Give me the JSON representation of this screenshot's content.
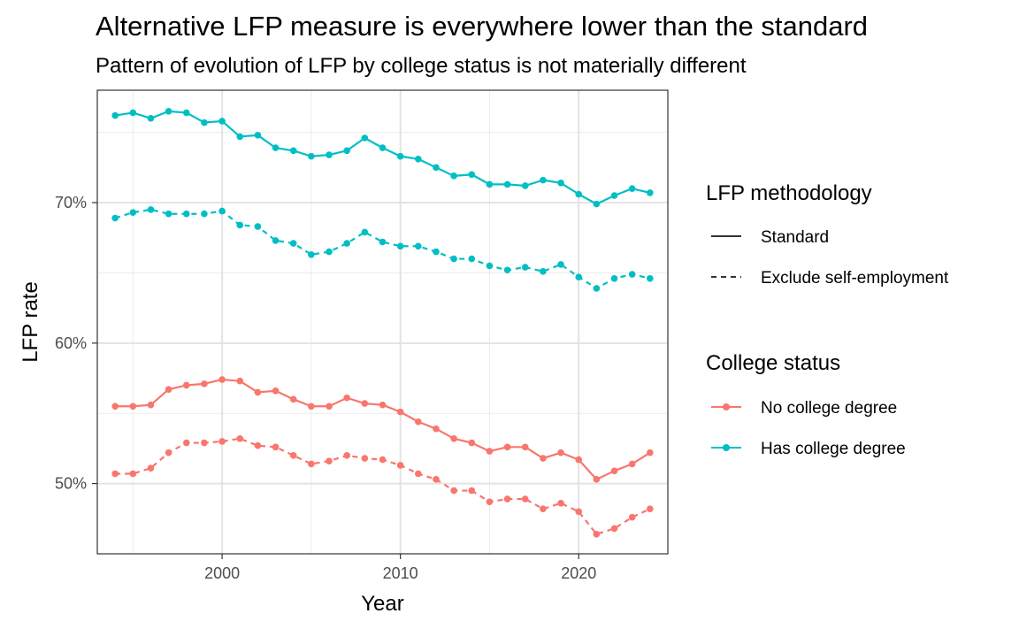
{
  "chart_data": {
    "type": "line",
    "title": "Alternative LFP measure is everywhere lower than the standard",
    "subtitle": "Pattern of evolution of LFP by college status is not materially different",
    "xlabel": "Year",
    "ylabel": "LFP rate",
    "xlim": [
      1993,
      2025
    ],
    "ylim": [
      45,
      78
    ],
    "x_ticks": [
      2000,
      2010,
      2020
    ],
    "x_tick_labels": [
      "2000",
      "2010",
      "2020"
    ],
    "y_ticks": [
      50,
      60,
      70
    ],
    "y_tick_labels": [
      "50%",
      "60%",
      "70%"
    ],
    "grid": true,
    "legend_placement": "right",
    "legend": {
      "linetype": {
        "title": "LFP methodology",
        "items": [
          {
            "label": "Standard",
            "style": "solid"
          },
          {
            "label": "Exclude self-employment",
            "style": "dashed"
          }
        ]
      },
      "color": {
        "title": "College status",
        "items": [
          {
            "label": "No college degree",
            "color": "#F8766D"
          },
          {
            "label": "Has college degree",
            "color": "#00BFC4"
          }
        ]
      }
    },
    "x": [
      1994,
      1995,
      1996,
      1997,
      1998,
      1999,
      2000,
      2001,
      2002,
      2003,
      2004,
      2005,
      2006,
      2007,
      2008,
      2009,
      2010,
      2011,
      2012,
      2013,
      2014,
      2015,
      2016,
      2017,
      2018,
      2019,
      2020,
      2021,
      2022,
      2023,
      2024
    ],
    "series": [
      {
        "college": "Has college degree",
        "method": "Standard",
        "color": "#00BFC4",
        "style": "solid",
        "values": [
          76.2,
          76.4,
          76.0,
          76.5,
          76.4,
          75.7,
          75.8,
          74.7,
          74.8,
          73.9,
          73.7,
          73.3,
          73.4,
          73.7,
          74.6,
          73.9,
          73.3,
          73.1,
          72.5,
          71.9,
          72.0,
          71.3,
          71.3,
          71.2,
          71.6,
          71.4,
          70.6,
          69.9,
          70.5,
          71.0,
          70.7
        ]
      },
      {
        "college": "Has college degree",
        "method": "Exclude self-employment",
        "color": "#00BFC4",
        "style": "dashed",
        "values": [
          68.9,
          69.3,
          69.5,
          69.2,
          69.2,
          69.2,
          69.4,
          68.4,
          68.3,
          67.3,
          67.1,
          66.3,
          66.5,
          67.1,
          67.9,
          67.2,
          66.9,
          66.9,
          66.5,
          66.0,
          66.0,
          65.5,
          65.2,
          65.4,
          65.1,
          65.6,
          64.7,
          63.9,
          64.6,
          64.9,
          64.6
        ]
      },
      {
        "college": "No college degree",
        "method": "Standard",
        "color": "#F8766D",
        "style": "solid",
        "values": [
          55.5,
          55.5,
          55.6,
          56.7,
          57.0,
          57.1,
          57.4,
          57.3,
          56.5,
          56.6,
          56.0,
          55.5,
          55.5,
          56.1,
          55.7,
          55.6,
          55.1,
          54.4,
          53.9,
          53.2,
          52.9,
          52.3,
          52.6,
          52.6,
          51.8,
          52.2,
          51.7,
          50.3,
          50.9,
          51.4,
          52.2
        ]
      },
      {
        "college": "No college degree",
        "method": "Exclude self-employment",
        "color": "#F8766D",
        "style": "dashed",
        "values": [
          50.7,
          50.7,
          51.1,
          52.2,
          52.9,
          52.9,
          53.0,
          53.2,
          52.7,
          52.6,
          52.0,
          51.4,
          51.6,
          52.0,
          51.8,
          51.7,
          51.3,
          50.7,
          50.3,
          49.5,
          49.5,
          48.7,
          48.9,
          48.9,
          48.2,
          48.6,
          48.0,
          46.4,
          46.8,
          47.6,
          48.2
        ]
      }
    ]
  }
}
